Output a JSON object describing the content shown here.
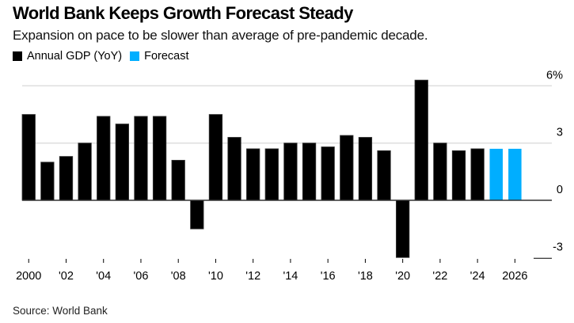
{
  "header": {
    "title": "World Bank Keeps Growth Forecast Steady",
    "subtitle": "Expansion on pace to be slower than average of pre-pandemic decade."
  },
  "legend": [
    {
      "label": "Annual GDP (YoY)",
      "color": "#000000"
    },
    {
      "label": "Forecast",
      "color": "#00aeff"
    }
  ],
  "footer": {
    "source": "Source: World Bank"
  },
  "chart_data": {
    "type": "bar",
    "title": "World Bank Keeps Growth Forecast Steady",
    "subtitle": "Expansion on pace to be slower than average of pre-pandemic decade.",
    "xlabel": "",
    "ylabel": "",
    "ylim": [
      -3,
      6
    ],
    "grid": true,
    "legend_position": "top-left",
    "y_axis_side": "right",
    "yticks": [
      {
        "value": 6,
        "label": "6%"
      },
      {
        "value": 3,
        "label": "3"
      },
      {
        "value": 0,
        "label": "0"
      },
      {
        "value": -3,
        "label": "-3"
      }
    ],
    "xticks": [
      {
        "year": 2000,
        "label": "2000"
      },
      {
        "year": 2002,
        "label": "'02"
      },
      {
        "year": 2004,
        "label": "'04"
      },
      {
        "year": 2006,
        "label": "'06"
      },
      {
        "year": 2008,
        "label": "'08"
      },
      {
        "year": 2010,
        "label": "'10"
      },
      {
        "year": 2012,
        "label": "'12"
      },
      {
        "year": 2014,
        "label": "'14"
      },
      {
        "year": 2016,
        "label": "'16"
      },
      {
        "year": 2018,
        "label": "'18"
      },
      {
        "year": 2020,
        "label": "'20"
      },
      {
        "year": 2022,
        "label": "'22"
      },
      {
        "year": 2024,
        "label": "'24"
      },
      {
        "year": 2026,
        "label": "2026"
      }
    ],
    "categories": [
      2000,
      2001,
      2002,
      2003,
      2004,
      2005,
      2006,
      2007,
      2008,
      2009,
      2010,
      2011,
      2012,
      2013,
      2014,
      2015,
      2016,
      2017,
      2018,
      2019,
      2020,
      2021,
      2022,
      2023,
      2024,
      2025,
      2026
    ],
    "series": [
      {
        "name": "Annual GDP (YoY)",
        "color": "#000000",
        "values": [
          4.5,
          2.0,
          2.3,
          3.0,
          4.4,
          4.0,
          4.4,
          4.4,
          2.1,
          -1.5,
          4.5,
          3.3,
          2.7,
          2.7,
          3.0,
          3.0,
          2.8,
          3.4,
          3.3,
          2.6,
          -3.0,
          6.3,
          3.0,
          2.6,
          2.7,
          null,
          null
        ]
      },
      {
        "name": "Forecast",
        "color": "#00aeff",
        "values": [
          null,
          null,
          null,
          null,
          null,
          null,
          null,
          null,
          null,
          null,
          null,
          null,
          null,
          null,
          null,
          null,
          null,
          null,
          null,
          null,
          null,
          null,
          null,
          null,
          null,
          2.7,
          2.7
        ]
      }
    ]
  }
}
